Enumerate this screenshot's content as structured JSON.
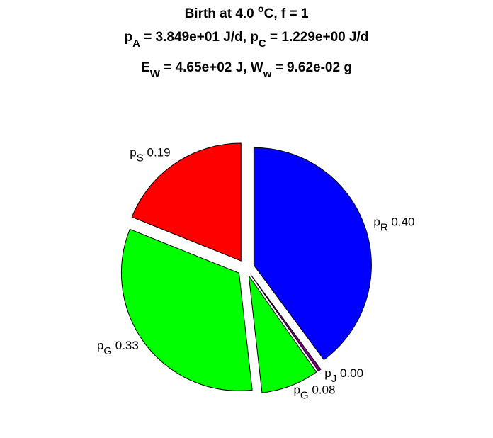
{
  "chart_data": {
    "type": "pie",
    "title": [
      [
        {
          "text": "Birth at 4.0 "
        },
        {
          "text": "o",
          "sup": true
        },
        {
          "text": "C, f = 1"
        }
      ],
      [
        {
          "text": "p"
        },
        {
          "text": "A",
          "sub": true
        },
        {
          "text": " = 3.849e+01 J/d, p"
        },
        {
          "text": "C",
          "sub": true
        },
        {
          "text": " = 1.229e+00 J/d"
        }
      ],
      [
        {
          "text": "E"
        },
        {
          "text": "W",
          "sub": true
        },
        {
          "text": " = 4.65e+02 J, W"
        },
        {
          "text": "w",
          "sub": true
        },
        {
          "text": " = 9.62e-02 g"
        }
      ]
    ],
    "categories": [
      "pR",
      "pJ",
      "pG",
      "pG",
      "pS"
    ],
    "values": [
      0.4,
      0.004,
      0.08,
      0.33,
      0.19
    ],
    "value_labels": [
      "0.40",
      "0.00",
      "0.08",
      "0.33",
      "0.19"
    ],
    "colors": [
      "#0000ff",
      "#800080",
      "#00ff00",
      "#00ff00",
      "#ff0000"
    ]
  }
}
